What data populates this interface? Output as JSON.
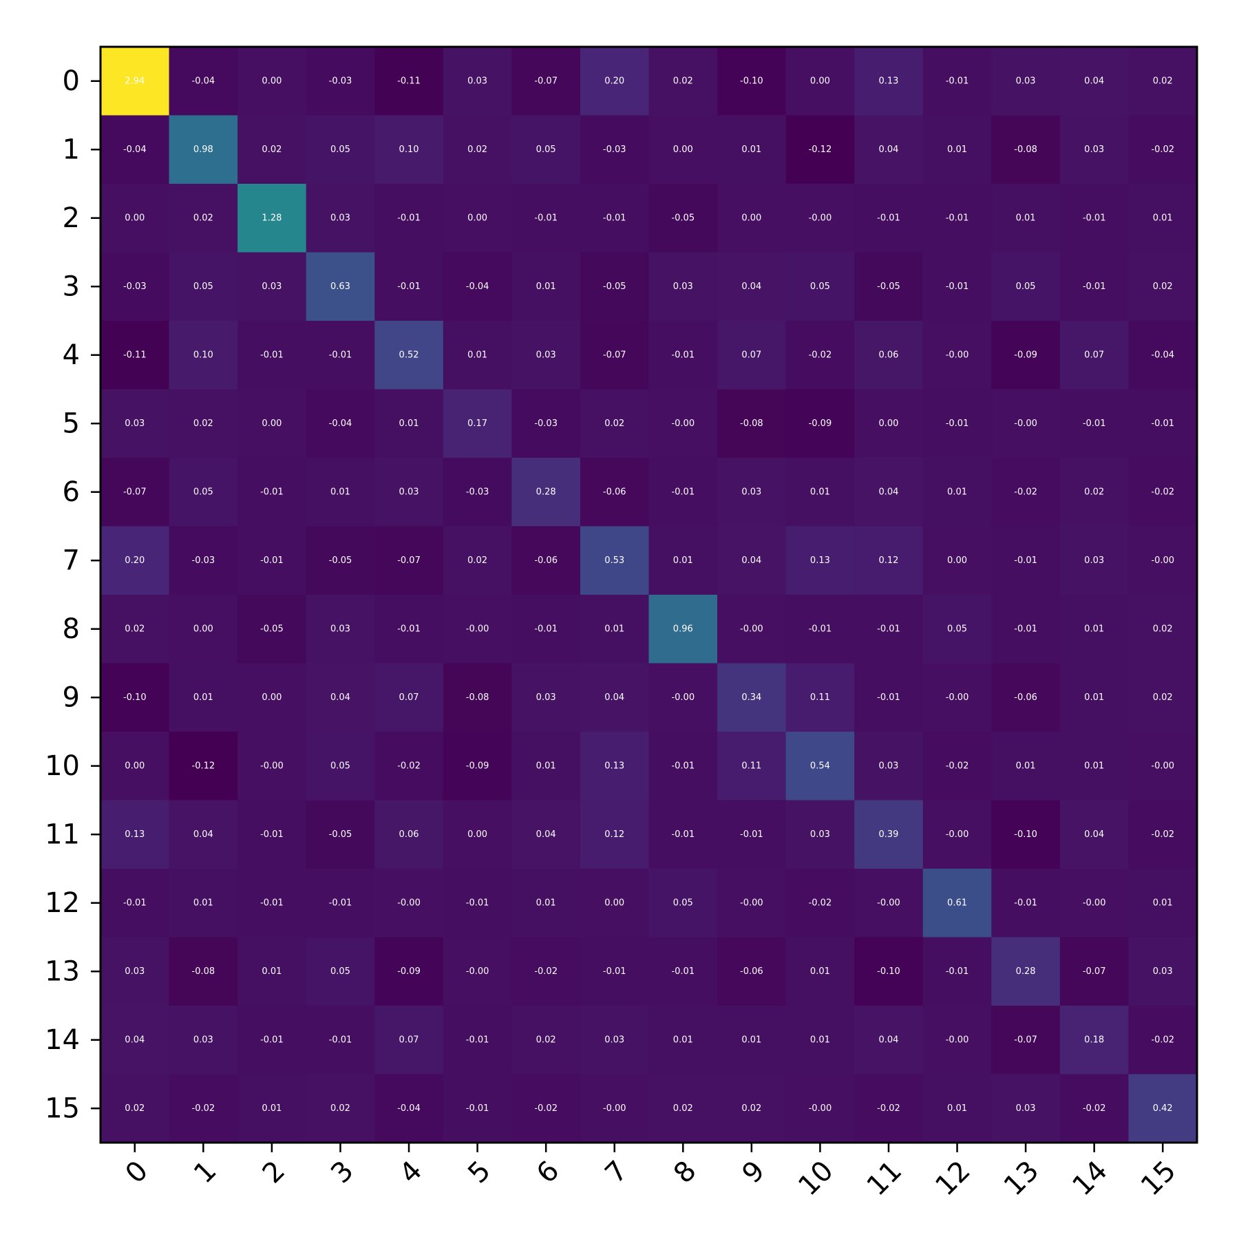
{
  "chart_data": {
    "type": "heatmap",
    "title": "",
    "xlabel": "",
    "ylabel": "",
    "colormap": "viridis",
    "vmin": -0.12,
    "vmax": 2.94,
    "x_categories": [
      "0",
      "1",
      "2",
      "3",
      "4",
      "5",
      "6",
      "7",
      "8",
      "9",
      "10",
      "11",
      "12",
      "13",
      "14",
      "15"
    ],
    "y_categories": [
      "0",
      "1",
      "2",
      "3",
      "4",
      "5",
      "6",
      "7",
      "8",
      "9",
      "10",
      "11",
      "12",
      "13",
      "14",
      "15"
    ],
    "values": [
      [
        2.94,
        -0.04,
        0.0,
        -0.03,
        -0.11,
        0.03,
        -0.07,
        0.2,
        0.02,
        -0.1,
        0.0,
        0.13,
        -0.01,
        0.03,
        0.04,
        0.02
      ],
      [
        -0.04,
        0.98,
        0.02,
        0.05,
        0.1,
        0.02,
        0.05,
        -0.03,
        0.0,
        0.01,
        -0.12,
        0.04,
        0.01,
        -0.08,
        0.03,
        -0.02
      ],
      [
        0.0,
        0.02,
        1.28,
        0.03,
        -0.01,
        0.0,
        -0.01,
        -0.01,
        -0.05,
        0.0,
        -0.0,
        -0.01,
        -0.01,
        0.01,
        -0.01,
        0.01
      ],
      [
        -0.03,
        0.05,
        0.03,
        0.63,
        -0.01,
        -0.04,
        0.01,
        -0.05,
        0.03,
        0.04,
        0.05,
        -0.05,
        -0.01,
        0.05,
        -0.01,
        0.02
      ],
      [
        -0.11,
        0.1,
        -0.01,
        -0.01,
        0.52,
        0.01,
        0.03,
        -0.07,
        -0.01,
        0.07,
        -0.02,
        0.06,
        -0.0,
        -0.09,
        0.07,
        -0.04
      ],
      [
        0.03,
        0.02,
        0.0,
        -0.04,
        0.01,
        0.17,
        -0.03,
        0.02,
        -0.0,
        -0.08,
        -0.09,
        0.0,
        -0.01,
        -0.0,
        -0.01,
        -0.01
      ],
      [
        -0.07,
        0.05,
        -0.01,
        0.01,
        0.03,
        -0.03,
        0.28,
        -0.06,
        -0.01,
        0.03,
        0.01,
        0.04,
        0.01,
        -0.02,
        0.02,
        -0.02
      ],
      [
        0.2,
        -0.03,
        -0.01,
        -0.05,
        -0.07,
        0.02,
        -0.06,
        0.53,
        0.01,
        0.04,
        0.13,
        0.12,
        0.0,
        -0.01,
        0.03,
        -0.0
      ],
      [
        0.02,
        0.0,
        -0.05,
        0.03,
        -0.01,
        -0.0,
        -0.01,
        0.01,
        0.96,
        -0.0,
        -0.01,
        -0.01,
        0.05,
        -0.01,
        0.01,
        0.02
      ],
      [
        -0.1,
        0.01,
        0.0,
        0.04,
        0.07,
        -0.08,
        0.03,
        0.04,
        -0.0,
        0.34,
        0.11,
        -0.01,
        -0.0,
        -0.06,
        0.01,
        0.02
      ],
      [
        0.0,
        -0.12,
        -0.0,
        0.05,
        -0.02,
        -0.09,
        0.01,
        0.13,
        -0.01,
        0.11,
        0.54,
        0.03,
        -0.02,
        0.01,
        0.01,
        -0.0
      ],
      [
        0.13,
        0.04,
        -0.01,
        -0.05,
        0.06,
        0.0,
        0.04,
        0.12,
        -0.01,
        -0.01,
        0.03,
        0.39,
        -0.0,
        -0.1,
        0.04,
        -0.02
      ],
      [
        -0.01,
        0.01,
        -0.01,
        -0.01,
        -0.0,
        -0.01,
        0.01,
        0.0,
        0.05,
        -0.0,
        -0.02,
        -0.0,
        0.61,
        -0.01,
        -0.0,
        0.01
      ],
      [
        0.03,
        -0.08,
        0.01,
        0.05,
        -0.09,
        -0.0,
        -0.02,
        -0.01,
        -0.01,
        -0.06,
        0.01,
        -0.1,
        -0.01,
        0.28,
        -0.07,
        0.03
      ],
      [
        0.04,
        0.03,
        -0.01,
        -0.01,
        0.07,
        -0.01,
        0.02,
        0.03,
        0.01,
        0.01,
        0.01,
        0.04,
        -0.0,
        -0.07,
        0.18,
        -0.02
      ],
      [
        0.02,
        -0.02,
        0.01,
        0.02,
        -0.04,
        -0.01,
        -0.02,
        -0.0,
        0.02,
        0.02,
        -0.0,
        -0.02,
        0.01,
        0.03,
        -0.02,
        0.42
      ]
    ],
    "cell_labels": true,
    "grid": false,
    "legend": "none"
  }
}
